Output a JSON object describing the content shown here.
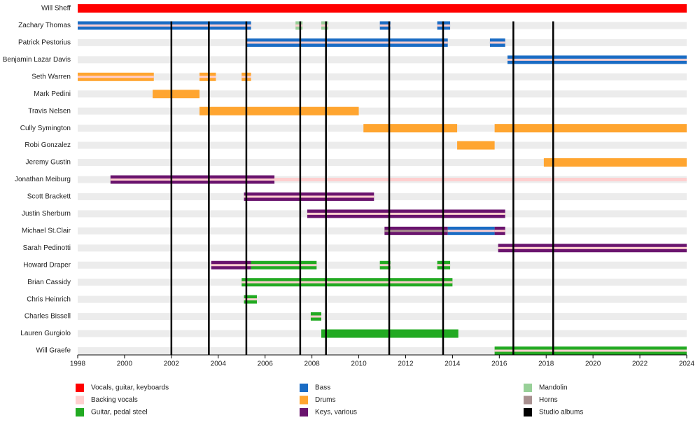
{
  "chart_data": {
    "type": "timeline",
    "xlim": [
      1998,
      2024
    ],
    "xticks": [
      1998,
      2000,
      2002,
      2004,
      2006,
      2008,
      2010,
      2012,
      2014,
      2016,
      2018,
      2020,
      2022,
      2024
    ],
    "roles": [
      {
        "name": "Vocals, guitar, keyboards",
        "color": "#ff0000"
      },
      {
        "name": "Backing vocals",
        "color": "#ffcfcf"
      },
      {
        "name": "Guitar, pedal steel",
        "color": "#22aa22"
      },
      {
        "name": "Bass",
        "color": "#1a6cc4"
      },
      {
        "name": "Drums",
        "color": "#ffa530"
      },
      {
        "name": "Keys, various",
        "color": "#6a146e"
      },
      {
        "name": "Mandolin",
        "color": "#98d098"
      },
      {
        "name": "Horns",
        "color": "#a89090"
      }
    ],
    "albums_label": "Studio albums",
    "albums_color": "#000000",
    "albums": [
      2002.0,
      2003.6,
      2005.2,
      2007.5,
      2008.6,
      2011.3,
      2013.6,
      2016.6,
      2018.3
    ],
    "members": [
      {
        "name": "Will Sheff",
        "spans": [
          {
            "start": 1998,
            "end": 2024,
            "role": "Vocals, guitar, keyboards"
          }
        ]
      },
      {
        "name": "Zachary Thomas",
        "spans": [
          {
            "start": 1998,
            "end": 2005.4,
            "role": "Bass",
            "stripe": "Backing vocals"
          },
          {
            "start": 2007.3,
            "end": 2007.6,
            "role": "Mandolin",
            "stripe": "Backing vocals"
          },
          {
            "start": 2008.4,
            "end": 2008.7,
            "role": "Mandolin",
            "stripe": "Backing vocals"
          },
          {
            "start": 2010.9,
            "end": 2011.35,
            "role": "Bass",
            "stripe": "Backing vocals"
          },
          {
            "start": 2013.35,
            "end": 2013.9,
            "role": "Bass",
            "stripe": "Backing vocals"
          }
        ]
      },
      {
        "name": "Patrick Pestorius",
        "spans": [
          {
            "start": 2005.2,
            "end": 2013.8,
            "role": "Bass",
            "stripe": "Backing vocals"
          },
          {
            "start": 2015.6,
            "end": 2016.25,
            "role": "Bass",
            "stripe": "Backing vocals"
          }
        ]
      },
      {
        "name": "Benjamin Lazar Davis",
        "spans": [
          {
            "start": 2016.35,
            "end": 2024,
            "role": "Bass",
            "stripe": "Backing vocals"
          }
        ]
      },
      {
        "name": "Seth Warren",
        "spans": [
          {
            "start": 1998,
            "end": 2001.25,
            "role": "Drums",
            "stripe": "Backing vocals"
          },
          {
            "start": 2003.2,
            "end": 2003.9,
            "role": "Drums",
            "stripe": "Backing vocals"
          },
          {
            "start": 2005.0,
            "end": 2005.4,
            "role": "Drums",
            "stripe": "Backing vocals"
          }
        ]
      },
      {
        "name": "Mark Pedini",
        "spans": [
          {
            "start": 2001.2,
            "end": 2003.2,
            "role": "Drums"
          }
        ]
      },
      {
        "name": "Travis Nelsen",
        "spans": [
          {
            "start": 2003.2,
            "end": 2010.0,
            "role": "Drums"
          }
        ]
      },
      {
        "name": "Cully Symington",
        "spans": [
          {
            "start": 2010.2,
            "end": 2014.2,
            "role": "Drums"
          },
          {
            "start": 2015.8,
            "end": 2024,
            "role": "Drums"
          }
        ]
      },
      {
        "name": "Robi Gonzalez",
        "spans": [
          {
            "start": 2014.2,
            "end": 2015.8,
            "role": "Drums"
          }
        ]
      },
      {
        "name": "Jeremy Gustin",
        "spans": [
          {
            "start": 2017.9,
            "end": 2024,
            "role": "Drums"
          }
        ]
      },
      {
        "name": "Jonathan Meiburg",
        "spans": [
          {
            "start": 1999.4,
            "end": 2006.4,
            "role": "Keys, various",
            "stripe": "Backing vocals"
          },
          {
            "start": 2006.4,
            "end": 2024,
            "role": "Backing vocals"
          }
        ]
      },
      {
        "name": "Scott Brackett",
        "spans": [
          {
            "start": 2005.1,
            "end": 2010.65,
            "role": "Keys, various",
            "stripe": "Backing vocals"
          }
        ]
      },
      {
        "name": "Justin Sherburn",
        "spans": [
          {
            "start": 2007.8,
            "end": 2016.25,
            "role": "Keys, various",
            "stripe": "Backing vocals"
          }
        ]
      },
      {
        "name": "Michael St.Clair",
        "spans": [
          {
            "start": 2011.1,
            "end": 2013.8,
            "role": "Keys, various",
            "stripe": "Horns"
          },
          {
            "start": 2013.8,
            "end": 2015.8,
            "role": "Bass",
            "stripe": "Backing vocals"
          },
          {
            "start": 2015.8,
            "end": 2016.25,
            "role": "Keys, various",
            "stripe": "Backing vocals"
          }
        ]
      },
      {
        "name": "Sarah Pedinotti",
        "spans": [
          {
            "start": 2015.95,
            "end": 2024,
            "role": "Keys, various",
            "stripe": "Backing vocals"
          }
        ]
      },
      {
        "name": "Howard Draper",
        "spans": [
          {
            "start": 2003.7,
            "end": 2005.4,
            "role": "Keys, various",
            "stripe": "Backing vocals"
          },
          {
            "start": 2005.4,
            "end": 2008.2,
            "role": "Guitar, pedal steel",
            "stripe": "Backing vocals"
          },
          {
            "start": 2010.9,
            "end": 2011.35,
            "role": "Guitar, pedal steel",
            "stripe": "Backing vocals"
          },
          {
            "start": 2013.35,
            "end": 2013.9,
            "role": "Guitar, pedal steel",
            "stripe": "Backing vocals"
          }
        ]
      },
      {
        "name": "Brian Cassidy",
        "spans": [
          {
            "start": 2005.0,
            "end": 2014.0,
            "role": "Guitar, pedal steel",
            "stripe": "Backing vocals"
          }
        ]
      },
      {
        "name": "Chris Heinrich",
        "spans": [
          {
            "start": 2005.1,
            "end": 2005.65,
            "role": "Guitar, pedal steel",
            "stripe": "Backing vocals"
          }
        ]
      },
      {
        "name": "Charles Bissell",
        "spans": [
          {
            "start": 2007.95,
            "end": 2008.4,
            "role": "Guitar, pedal steel",
            "stripe": "Backing vocals"
          }
        ]
      },
      {
        "name": "Lauren Gurgiolo",
        "spans": [
          {
            "start": 2008.4,
            "end": 2014.25,
            "role": "Guitar, pedal steel"
          }
        ]
      },
      {
        "name": "Will Graefe",
        "spans": [
          {
            "start": 2015.8,
            "end": 2024,
            "role": "Guitar, pedal steel",
            "stripe": "Backing vocals"
          }
        ]
      }
    ]
  }
}
